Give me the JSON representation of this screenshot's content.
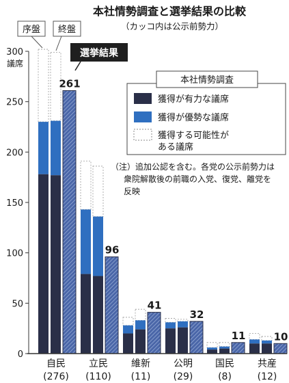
{
  "chart_data": {
    "type": "bar",
    "title": "本社情勢調査と選挙結果の比較",
    "subtitle": "（カッコ内は公示前勢力）",
    "ylabel": "議席",
    "ylim": [
      0,
      300
    ],
    "yticks": [
      0,
      50,
      100,
      150,
      200,
      250,
      300
    ],
    "categories": [
      "自民",
      "立民",
      "維新",
      "公明",
      "国民",
      "共産"
    ],
    "pre_election_strength": [
      "(276)",
      "(110)",
      "(11)",
      "(29)",
      "(8)",
      "(12)"
    ],
    "bar_tags": {
      "early": "序盤",
      "final": "終盤"
    },
    "result_label": "選挙結果",
    "legend_title": "本社情勢調査",
    "legend_entries": [
      "獲得が有力な議席",
      "獲得が優勢な議席",
      "獲得する可能性がある議席"
    ],
    "note": "（注）追加公認を含む。各党の公示前勢力は衆院解散後の前職の入党、復党、離党を反映",
    "series": [
      {
        "name": "序盤",
        "likely": [
          178,
          79,
          20,
          25,
          4,
          10
        ],
        "leaning": [
          52,
          64,
          8,
          6,
          2,
          4
        ],
        "possible": [
          72,
          48,
          8,
          4,
          5,
          6
        ]
      },
      {
        "name": "終盤",
        "likely": [
          177,
          77,
          24,
          26,
          5,
          10
        ],
        "leaning": [
          54,
          59,
          9,
          6,
          2,
          3
        ],
        "possible": [
          68,
          50,
          11,
          2,
          4,
          4
        ]
      }
    ],
    "results": [
      261,
      96,
      41,
      32,
      11,
      10
    ],
    "colors": {
      "likely": "#2a2f48",
      "leaning": "#2f6fc0",
      "result": "#4a66a8",
      "result_stripe": "#8aa2cf"
    }
  }
}
